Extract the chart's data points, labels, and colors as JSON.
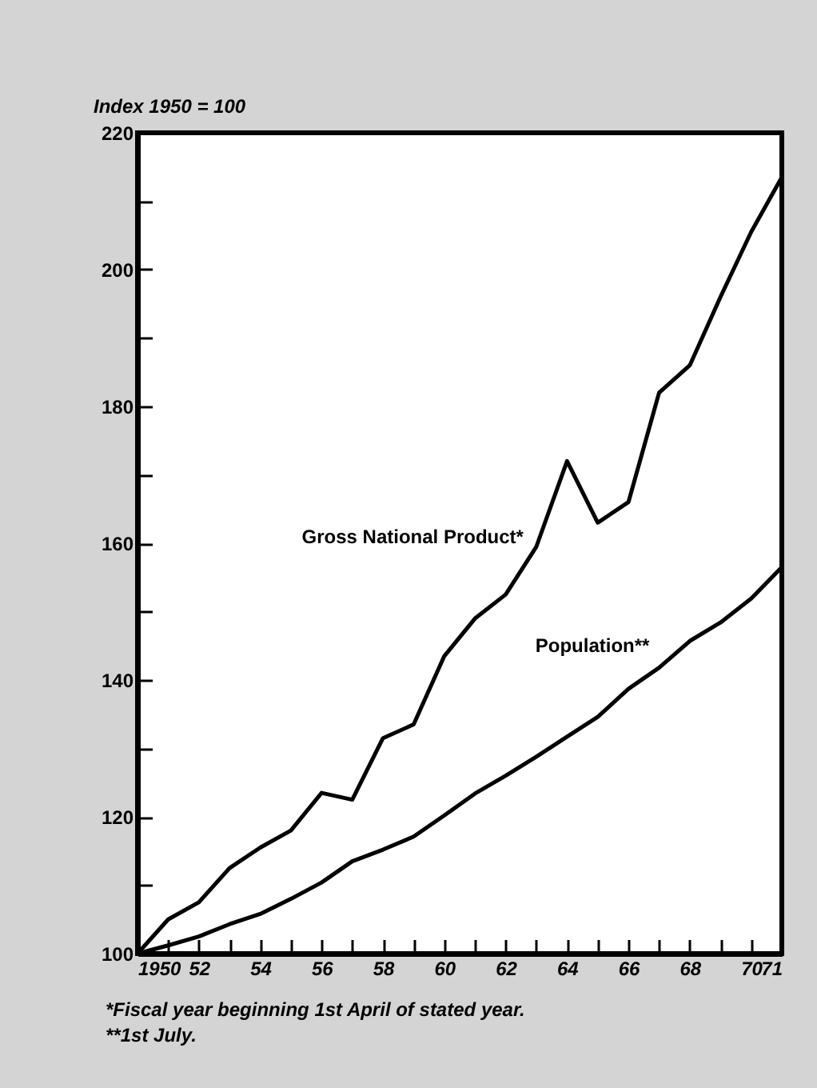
{
  "chart_data": {
    "type": "line",
    "ylabel": "Index 1950 = 100",
    "x": [
      1950,
      1951,
      1952,
      1953,
      1954,
      1955,
      1956,
      1957,
      1958,
      1959,
      1960,
      1961,
      1962,
      1963,
      1964,
      1965,
      1966,
      1967,
      1968,
      1969,
      1970,
      1971
    ],
    "series": [
      {
        "name": "Gross National Product*",
        "color": "#000000",
        "values": [
          100,
          105,
          107.5,
          112.5,
          115.5,
          118,
          123.5,
          122.5,
          131.5,
          133.5,
          143.5,
          149,
          152.5,
          159.5,
          172,
          163,
          166,
          182,
          186,
          196,
          205.5,
          213.5
        ]
      },
      {
        "name": "Population**",
        "color": "#000000",
        "values": [
          100,
          101.2,
          102.5,
          104.3,
          105.8,
          108,
          110.4,
          113.5,
          115.2,
          117.1,
          120.2,
          123.4,
          126,
          128.8,
          131.7,
          134.6,
          138.7,
          141.8,
          145.7,
          148.4,
          151.9,
          156.5
        ]
      }
    ],
    "xlim": [
      1950,
      1971
    ],
    "xticks": [
      {
        "value": 1950,
        "label": "1950"
      },
      {
        "value": 1951,
        "label": null
      },
      {
        "value": 1952,
        "label": "52"
      },
      {
        "value": 1953,
        "label": null
      },
      {
        "value": 1954,
        "label": "54"
      },
      {
        "value": 1955,
        "label": null
      },
      {
        "value": 1956,
        "label": "56"
      },
      {
        "value": 1957,
        "label": null
      },
      {
        "value": 1958,
        "label": "58"
      },
      {
        "value": 1959,
        "label": null
      },
      {
        "value": 1960,
        "label": "60"
      },
      {
        "value": 1961,
        "label": null
      },
      {
        "value": 1962,
        "label": "62"
      },
      {
        "value": 1963,
        "label": null
      },
      {
        "value": 1964,
        "label": "64"
      },
      {
        "value": 1965,
        "label": null
      },
      {
        "value": 1966,
        "label": "66"
      },
      {
        "value": 1967,
        "label": null
      },
      {
        "value": 1968,
        "label": "68"
      },
      {
        "value": 1969,
        "label": null
      },
      {
        "value": 1970,
        "label": "70"
      },
      {
        "value": 1971,
        "label": "71"
      }
    ],
    "ylim": [
      100,
      220
    ],
    "yticks": [
      100,
      {
        "value": 110,
        "label": null
      },
      120,
      {
        "value": 130,
        "label": null
      },
      140,
      {
        "value": 150,
        "label": null
      },
      160,
      {
        "value": 170,
        "label": null
      },
      180,
      {
        "value": 190,
        "label": null
      },
      200,
      {
        "value": 210,
        "label": null
      },
      220
    ],
    "grid": false,
    "legend": false,
    "marker": "none",
    "line_style": "solid",
    "annotations": [
      "*Fiscal year beginning 1st April of stated year.",
      "**1st July."
    ]
  }
}
